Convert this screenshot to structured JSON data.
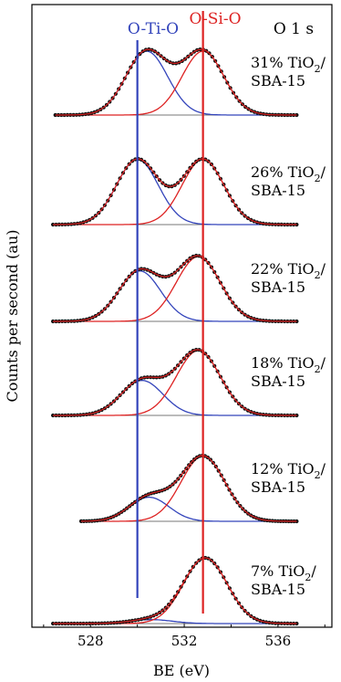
{
  "chart_data": {
    "type": "line",
    "title": "O 1 s",
    "xlabel": "BE (eV)",
    "ylabel": "Counts per second (au)",
    "xlim": [
      525.5,
      538.3
    ],
    "xticks": [
      "528",
      "532",
      "536"
    ],
    "xtick_values": [
      528,
      532,
      536
    ],
    "reference_lines": [
      {
        "label": "O-Ti-O",
        "x": 530.0,
        "color": "#3344bb"
      },
      {
        "label": "O-Si-O",
        "x": 532.8,
        "color": "#dd2222"
      }
    ],
    "series_colors": {
      "fit_ti": "#3344bb",
      "fit_si": "#dd2222",
      "envelope": "#dd2222",
      "points": "#111111",
      "baseline": "#777777"
    },
    "spectra": [
      {
        "label_main": "31% TiO",
        "label_sub": "2",
        "label_tail": "/",
        "label_line2": "SBA-15",
        "x_range": [
          526.5,
          536.8
        ],
        "ti_peak": {
          "center": 530.4,
          "amp": 1.0,
          "fwhm": 2.1
        },
        "si_peak": {
          "center": 532.8,
          "amp": 1.0,
          "fwhm": 2.1
        }
      },
      {
        "label_main": "26% TiO",
        "label_sub": "2",
        "label_tail": "/",
        "label_line2": "SBA-15",
        "x_range": [
          526.4,
          536.8
        ],
        "ti_peak": {
          "center": 530.0,
          "amp": 1.0,
          "fwhm": 2.1
        },
        "si_peak": {
          "center": 532.8,
          "amp": 1.0,
          "fwhm": 2.1
        }
      },
      {
        "label_main": "22% TiO",
        "label_sub": "2",
        "label_tail": "/",
        "label_line2": "SBA-15",
        "x_range": [
          526.4,
          536.8
        ],
        "ti_peak": {
          "center": 530.1,
          "amp": 0.78,
          "fwhm": 2.1
        },
        "si_peak": {
          "center": 532.6,
          "amp": 1.0,
          "fwhm": 2.2
        }
      },
      {
        "label_main": "18% TiO",
        "label_sub": "2",
        "label_tail": "/",
        "label_line2": "SBA-15",
        "x_range": [
          526.4,
          536.8
        ],
        "ti_peak": {
          "center": 530.2,
          "amp": 0.54,
          "fwhm": 2.1
        },
        "si_peak": {
          "center": 532.6,
          "amp": 1.0,
          "fwhm": 2.2
        }
      },
      {
        "label_main": "12% TiO",
        "label_sub": "2",
        "label_tail": "/",
        "label_line2": "SBA-15",
        "x_range": [
          527.6,
          536.8
        ],
        "ti_peak": {
          "center": 530.5,
          "amp": 0.37,
          "fwhm": 2.0
        },
        "si_peak": {
          "center": 532.8,
          "amp": 1.0,
          "fwhm": 2.2
        }
      },
      {
        "label_main": "7% TiO",
        "label_sub": "2",
        "label_tail": "/",
        "label_line2": "SBA-15",
        "x_range": [
          526.4,
          536.8
        ],
        "ti_peak": {
          "center": 530.6,
          "amp": 0.06,
          "fwhm": 2.1
        },
        "si_peak": {
          "center": 532.9,
          "amp": 1.0,
          "fwhm": 2.2
        }
      }
    ]
  }
}
